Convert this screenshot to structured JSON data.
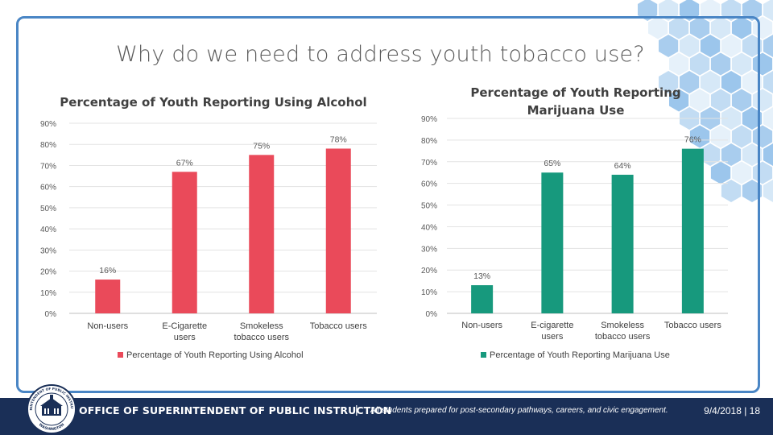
{
  "slide": {
    "title": "Why do we need to address youth tobacco use?"
  },
  "chart_data": [
    {
      "type": "bar",
      "title": "Percentage of Youth Reporting Using Alcohol",
      "categories": [
        "Non-users",
        "E-Cigarette users",
        "Smokeless tobacco users",
        "Tobacco users"
      ],
      "values": [
        16,
        67,
        75,
        78
      ],
      "value_labels": [
        "16%",
        "67%",
        "75%",
        "78%"
      ],
      "y_ticks": [
        "0%",
        "10%",
        "20%",
        "30%",
        "40%",
        "50%",
        "60%",
        "70%",
        "80%",
        "90%"
      ],
      "ylim": [
        0,
        90
      ],
      "legend": "Percentage of Youth Reporting Using Alcohol",
      "legend_position": "bottom",
      "color": "#ea4a5a"
    },
    {
      "type": "bar",
      "title": "Percentage of Youth Reporting Marijuana Use",
      "categories": [
        "Non-users",
        "E-cigarette users",
        "Smokeless tobacco users",
        "Tobacco users"
      ],
      "values": [
        13,
        65,
        64,
        76
      ],
      "value_labels": [
        "13%",
        "65%",
        "64%",
        "76%"
      ],
      "y_ticks": [
        "0%",
        "10%",
        "20%",
        "30%",
        "40%",
        "50%",
        "60%",
        "70%",
        "80%",
        "90%"
      ],
      "ylim": [
        0,
        90
      ],
      "legend": "Percentage of Youth Reporting Marijuana Use",
      "legend_position": "bottom",
      "color": "#17997d"
    }
  ],
  "footer": {
    "org": "OFFICE OF SUPERINTENDENT OF PUBLIC INSTRUCTION",
    "separator": "|",
    "tagline": "All students prepared for post-secondary pathways, careers, and civic engagement.",
    "date_page": "9/4/2018  |  18",
    "seal_top": "SUPERINTENDENT OF PUBLIC INSTRUCTION",
    "seal_bottom": "WASHINGTON"
  },
  "colors": {
    "frame": "#4a86c5",
    "footer_bg": "#1a2f57",
    "hex_light": "#d6e8f7",
    "hex_mid": "#a9cdee"
  }
}
